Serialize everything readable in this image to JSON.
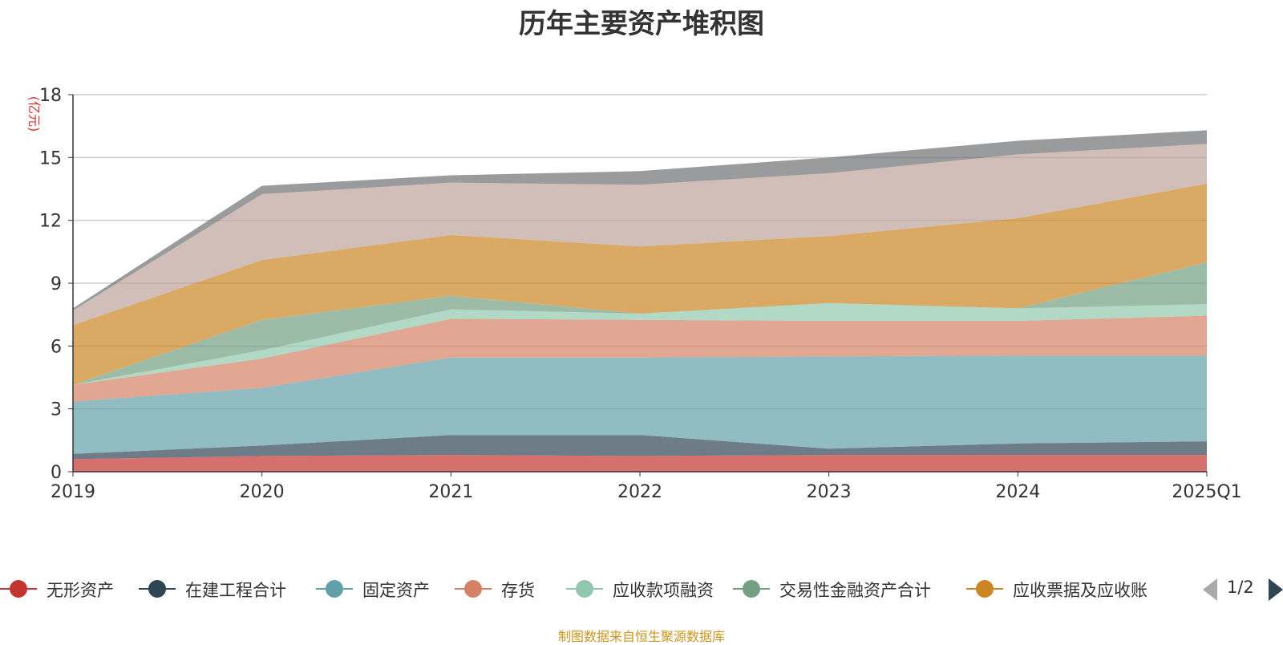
{
  "title": "历年主要资产堆积图",
  "source_note": "制图数据来自恒生聚源数据库",
  "legend_pager": "1/2",
  "chart_data": {
    "type": "area",
    "stacked": true,
    "ylabel": "(亿元)",
    "ylim": [
      0,
      18
    ],
    "yticks": [
      0,
      3,
      6,
      9,
      12,
      15,
      18
    ],
    "grid": true,
    "categories": [
      "2019",
      "2020",
      "2021",
      "2022",
      "2023",
      "2024",
      "2025Q1"
    ],
    "series": [
      {
        "name": "无形资产",
        "color": "#c23531",
        "values": [
          0.6,
          0.75,
          0.8,
          0.75,
          0.8,
          0.8,
          0.8
        ]
      },
      {
        "name": "在建工程合计",
        "color": "#2f4554",
        "values": [
          0.25,
          0.5,
          0.95,
          1.0,
          0.3,
          0.55,
          0.65
        ]
      },
      {
        "name": "固定资产",
        "color": "#61a0a8",
        "values": [
          2.5,
          2.75,
          3.7,
          3.7,
          4.4,
          4.2,
          4.1
        ]
      },
      {
        "name": "存货",
        "color": "#d48265",
        "values": [
          0.8,
          1.4,
          1.85,
          1.8,
          1.7,
          1.65,
          1.9
        ]
      },
      {
        "name": "应收款项融资",
        "color": "#91c7ae",
        "values": [
          0.0,
          0.4,
          0.45,
          0.3,
          0.85,
          0.6,
          0.55
        ]
      },
      {
        "name": "交易性金融资产合计",
        "color": "#749f83",
        "values": [
          0.0,
          1.45,
          0.65,
          0.0,
          0.0,
          0.0,
          2.0
        ]
      },
      {
        "name": "应收票据及应收账",
        "color": "#ca8622",
        "values": [
          2.85,
          2.85,
          2.9,
          3.2,
          3.2,
          4.3,
          3.75
        ]
      },
      {
        "name": "",
        "color": "#bda29a",
        "values": [
          0.7,
          3.15,
          2.5,
          2.95,
          3.0,
          3.05,
          1.9
        ]
      },
      {
        "name": "",
        "color": "#6e7074",
        "values": [
          0.1,
          0.4,
          0.35,
          0.65,
          0.75,
          0.65,
          0.65
        ]
      }
    ],
    "legend_position": "bottom"
  }
}
